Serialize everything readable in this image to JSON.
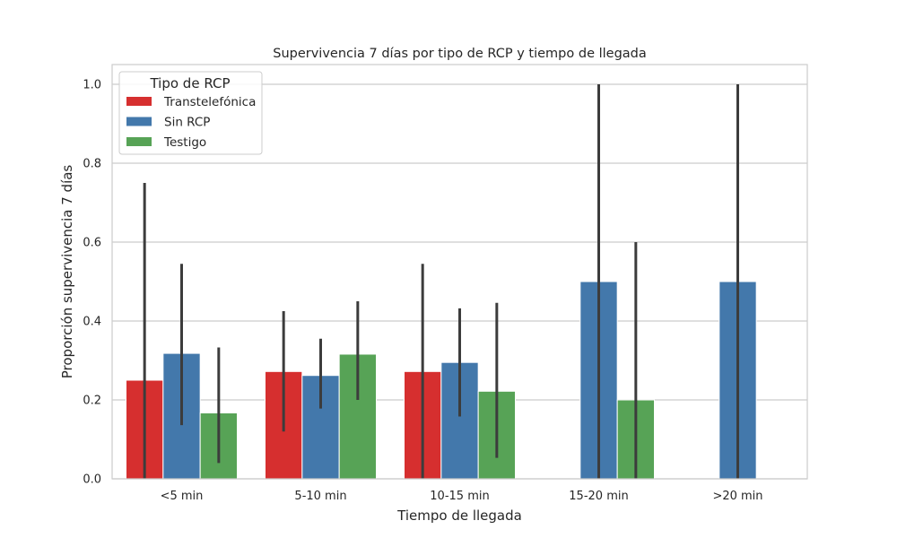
{
  "chart_data": {
    "type": "bar",
    "title": "Supervivencia 7 días por tipo de RCP y tiempo de llegada",
    "xlabel": "Tiempo de llegada",
    "ylabel": "Proporción supervivencia 7 días",
    "ylim": [
      0,
      1.05
    ],
    "yticks": [
      "0.0",
      "0.2",
      "0.4",
      "0.6",
      "0.8",
      "1.0"
    ],
    "grid": "horizontal",
    "legend": {
      "title": "Tipo de RCP",
      "placement": "top-left"
    },
    "categories": [
      "<5 min",
      "5-10 min",
      "10-15 min",
      "15-20 min",
      ">20 min"
    ],
    "series": [
      {
        "name": "Transtelefónica",
        "color": "#d62f2f",
        "values": [
          0.25,
          0.272,
          0.272,
          null,
          null
        ],
        "ci_low": [
          0.0,
          0.12,
          0.0,
          null,
          null
        ],
        "ci_high": [
          0.75,
          0.425,
          0.545,
          null,
          null
        ]
      },
      {
        "name": "Sin RCP",
        "color": "#4378ab",
        "values": [
          0.318,
          0.262,
          0.295,
          0.5,
          0.5
        ],
        "ci_low": [
          0.136,
          0.178,
          0.158,
          0.0,
          0.0
        ],
        "ci_high": [
          0.545,
          0.355,
          0.432,
          1.0,
          1.0
        ]
      },
      {
        "name": "Testigo",
        "color": "#57a356",
        "values": [
          0.167,
          0.316,
          0.222,
          0.2,
          null
        ],
        "ci_low": [
          0.04,
          0.2,
          0.053,
          0.0,
          null
        ],
        "ci_high": [
          0.333,
          0.45,
          0.446,
          0.6,
          null
        ]
      }
    ]
  }
}
